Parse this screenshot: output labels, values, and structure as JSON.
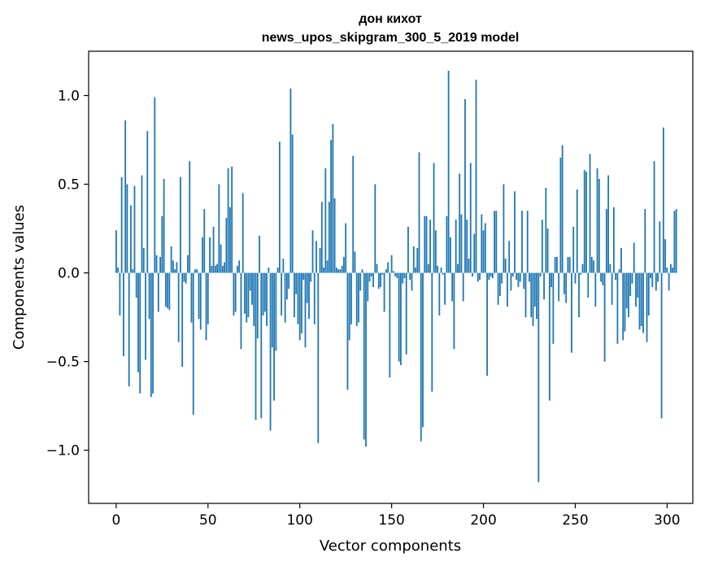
{
  "chart_data": {
    "type": "bar",
    "title": "дон кихот",
    "subtitle": "news_upos_skipgram_300_5_2019 model",
    "xlabel": "Vector components",
    "ylabel": "Components values",
    "xlim": [
      -15,
      314
    ],
    "ylim": [
      -1.3,
      1.25
    ],
    "xticks": [
      0,
      50,
      100,
      150,
      200,
      250,
      300
    ],
    "xtick_labels": [
      "0",
      "50",
      "100",
      "150",
      "200",
      "250",
      "300"
    ],
    "yticks": [
      -1.0,
      -0.5,
      0.0,
      0.5,
      1.0
    ],
    "ytick_labels": [
      "−1.0",
      "−0.5",
      "0.0",
      "0.5",
      "1.0"
    ],
    "grid": false,
    "bar_color": "#1f77b4",
    "values": [
      0.24,
      0.03,
      -0.24,
      0.54,
      -0.47,
      0.86,
      0.5,
      -0.64,
      0.38,
      0.02,
      0.49,
      -0.14,
      -0.56,
      -0.68,
      0.55,
      0.14,
      -0.49,
      0.8,
      -0.26,
      -0.7,
      -0.68,
      0.99,
      0.1,
      -0.22,
      0.09,
      0.32,
      0.53,
      -0.19,
      -0.2,
      -0.21,
      0.15,
      0.07,
      0.02,
      0.06,
      -0.39,
      0.54,
      -0.53,
      -0.05,
      -0.06,
      0.1,
      0.63,
      -0.28,
      -0.8,
      0.02,
      0.02,
      -0.26,
      -0.32,
      0.2,
      0.36,
      -0.38,
      -0.29,
      0.2,
      0.04,
      0.26,
      0.04,
      0.05,
      0.5,
      0.16,
      0.04,
      0.06,
      0.31,
      0.59,
      0.37,
      0.6,
      -0.24,
      -0.22,
      0.04,
      0.07,
      -0.43,
      0.45,
      -0.23,
      -0.28,
      -0.25,
      -0.1,
      -0.18,
      -0.3,
      -0.83,
      -0.37,
      0.21,
      -0.82,
      -0.24,
      -0.22,
      -0.3,
      0.03,
      -0.89,
      -0.42,
      -0.72,
      -0.44,
      0.03,
      0.74,
      -0.24,
      0.08,
      -0.28,
      -0.15,
      -0.09,
      1.04,
      0.78,
      -0.25,
      -0.12,
      -0.29,
      -0.38,
      -0.34,
      -0.04,
      -0.42,
      -0.17,
      -0.26,
      -0.05,
      0.24,
      -0.29,
      0.18,
      -0.96,
      0.14,
      0.4,
      0.03,
      0.59,
      0.07,
      0.4,
      0.75,
      0.84,
      0.42,
      0.03,
      0.02,
      0.02,
      0.04,
      0.09,
      0.28,
      -0.66,
      -0.38,
      -0.29,
      0.66,
      0.12,
      -0.3,
      -0.28,
      -0.1,
      0.02,
      -0.94,
      -0.98,
      -0.16,
      -0.05,
      -0.02,
      -0.08,
      0.5,
      0.05,
      -0.09,
      -0.08,
      -0.01,
      -0.22,
      0.02,
      0.06,
      -0.59,
      0.1,
      0.01,
      -0.02,
      -0.03,
      -0.5,
      -0.52,
      -0.06,
      -0.03,
      -0.46,
      0.26,
      -0.04,
      -0.1,
      0.15,
      0.03,
      0.14,
      0.68,
      -0.95,
      -0.87,
      0.32,
      0.32,
      0.05,
      0.3,
      -0.67,
      0.62,
      0.24,
      0.04,
      -0.24,
      0.03,
      -0.01,
      -0.18,
      0.32,
      1.14,
      0.2,
      -0.16,
      -0.43,
      0.3,
      0.05,
      0.56,
      0.33,
      -0.16,
      0.98,
      0.3,
      0.08,
      0.62,
      -0.02,
      0.22,
      1.09,
      -0.05,
      -0.04,
      0.33,
      0.24,
      0.28,
      -0.58,
      -0.04,
      -0.02,
      -0.03,
      0.35,
      0.35,
      -0.18,
      -0.13,
      -0.06,
      0.5,
      0.08,
      -0.19,
      0.18,
      -0.1,
      -0.02,
      0.46,
      -0.04,
      -0.08,
      -0.05,
      0.35,
      -0.09,
      -0.25,
      0.35,
      -0.05,
      -0.25,
      -0.3,
      -0.19,
      -0.26,
      -1.18,
      -0.02,
      0.3,
      -0.15,
      0.48,
      0.25,
      -0.72,
      -0.08,
      -0.4,
      0.09,
      0.09,
      -0.16,
      0.65,
      0.72,
      -0.12,
      -0.17,
      0.09,
      0.09,
      -0.45,
      0.26,
      -0.06,
      0.47,
      -0.25,
      -0.01,
      0.05,
      0.58,
      0.57,
      -0.14,
      0.67,
      0.09,
      0.07,
      -0.19,
      0.59,
      0.53,
      -0.05,
      -0.07,
      -0.5,
      0.36,
      0.55,
      0.05,
      -0.18,
      0.37,
      -0.04,
      -0.4,
      0.02,
      0.14,
      -0.38,
      -0.33,
      -0.2,
      -0.25,
      -0.13,
      -0.06,
      0.17,
      -0.19,
      -0.14,
      -0.32,
      -0.3,
      -0.34,
      0.36,
      -0.39,
      -0.24,
      -0.03,
      -0.08,
      0.63,
      -0.1,
      -0.05,
      0.29,
      -0.82,
      0.82,
      0.19,
      0.03,
      -0.1,
      0.05,
      0.03,
      0.35,
      0.36
    ]
  }
}
